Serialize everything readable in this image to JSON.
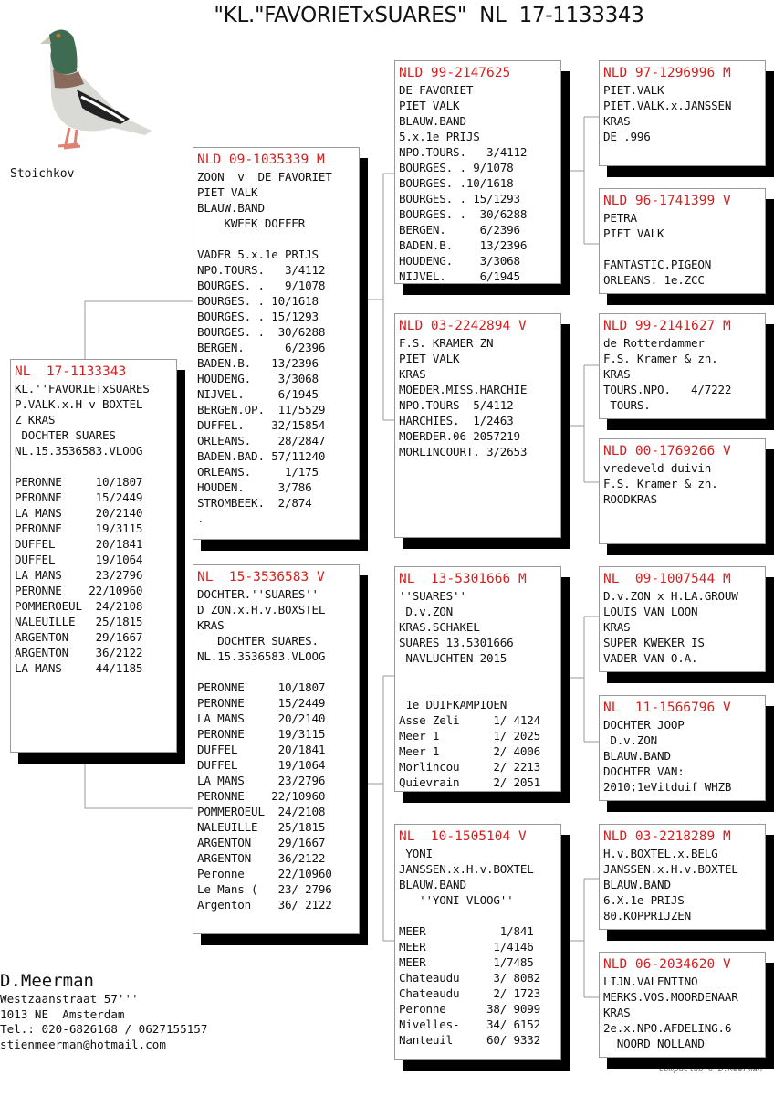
{
  "title": "\"KL.\"FAVORIETxSUARES\"  NL  17-1133343",
  "photo": {
    "caption": "Stoichkov",
    "icon": "pigeon-photo"
  },
  "colors": {
    "ring": "#d42020",
    "shadow": "#000000",
    "border": "#999999"
  },
  "pedigree": {
    "subject": {
      "ring": "NL  17-1133343",
      "lines": [
        "KL.''FAVORIETxSUARES",
        "P.VALK.x.H v BOXTEL",
        "Z KRAS",
        " DOCHTER SUARES",
        "NL.15.3536583.VLOOG",
        "",
        "PERONNE     10/1807",
        "PERONNE     15/2449",
        "LA MANS     20/2140",
        "PERONNE     19/3115",
        "DUFFEL      20/1841",
        "DUFFEL      19/1064",
        "LA MANS     23/2796",
        "PERONNE    22/10960",
        "POMMEROEUL  24/2108",
        "NALEUILLE   25/1815",
        "ARGENTON    29/1667",
        "ARGENTON    36/2122",
        "LA MANS     44/1185"
      ]
    },
    "sire": {
      "ring": "NLD 09-1035339 M",
      "lines": [
        "ZOON  v  DE FAVORIET",
        "PIET VALK",
        "BLAUW.BAND",
        "    KWEEK DOFFER",
        "",
        "VADER 5.x.1e PRIJS",
        "NPO.TOURS.   3/4112",
        "BOURGES. .   9/1078",
        "BOURGES. . 10/1618",
        "BOURGES. . 15/1293",
        "BOURGES. .  30/6288",
        "BERGEN.      6/2396",
        "BADEN.B.   13/2396",
        "HOUDENG.    3/3068",
        "NIJVEL.     6/1945",
        "BERGEN.OP.  11/5529",
        "DUFFEL.    32/15854",
        "ORLEANS.    28/2847",
        "BADEN.BAD. 57/11240",
        "ORLEANS.     1/175",
        "HOUDEN.     3/786",
        "STROMBEEK.  2/874",
        "."
      ]
    },
    "dam": {
      "ring": "NL  15-3536583 V",
      "lines": [
        "DOCHTER.''SUARES''",
        "D ZON.x.H.v.BOXSTEL",
        "KRAS",
        "   DOCHTER SUARES.",
        "NL.15.3536583.VLOOG",
        "",
        "PERONNE     10/1807",
        "PERONNE     15/2449",
        "LA MANS     20/2140",
        "PERONNE     19/3115",
        "DUFFEL      20/1841",
        "DUFFEL      19/1064",
        "LA MANS     23/2796",
        "PERONNE    22/10960",
        "POMMEROEUL  24/2108",
        "NALEUILLE   25/1815",
        "ARGENTON    29/1667",
        "ARGENTON    36/2122",
        "Peronne     22/10960",
        "Le Mans (   23/ 2796",
        "Argenton    36/ 2122"
      ]
    },
    "sire_sire": {
      "ring": "NLD 99-2147625",
      "lines": [
        "DE FAVORIET",
        "PIET VALK",
        "BLAUW.BAND",
        "5.x.1e PRIJS",
        "NPO.TOURS.   3/4112",
        "BOURGES. . 9/1078",
        "BOURGES. .10/1618",
        "BOURGES. . 15/1293",
        "BOURGES. .  30/6288",
        "BERGEN.     6/2396",
        "BADEN.B.    13/2396",
        "HOUDENG.    3/3068",
        "NIJVEL.     6/1945"
      ]
    },
    "sire_dam": {
      "ring": "NLD 03-2242894 V",
      "lines": [
        "F.S. KRAMER ZN",
        "PIET VALK",
        "KRAS",
        "MOEDER.MISS.HARCHIE",
        "NPO.TOURS  5/4112",
        "HARCHIES.  1/2463",
        "MOERDER.06 2057219",
        "MORLINCOURT. 3/2653"
      ]
    },
    "dam_sire": {
      "ring": "NL  13-5301666 M",
      "lines": [
        "''SUARES''",
        " D.v.ZON",
        "KRAS.SCHAKEL",
        "SUARES 13.5301666",
        " NAVLUCHTEN 2015",
        "",
        "",
        " 1e DUIFKAMPIOEN",
        "Asse Zeli     1/ 4124",
        "Meer 1        1/ 2025",
        "Meer 1        2/ 4006",
        "Morlincou     2/ 2213",
        "Quievrain     2/ 2051"
      ]
    },
    "dam_dam": {
      "ring": "NL  10-1505104 V",
      "lines": [
        " YONI",
        "JANSSEN.x.H.v.BOXTEL",
        "BLAUW.BAND",
        "   ''YONI VLOOG''",
        "",
        "MEER           1/841",
        "MEER          1/4146",
        "MEER          1/7485",
        "Chateaudu     3/ 8082",
        "Chateaudu     2/ 1723",
        "Peronne      38/ 9099",
        "Nivelles-    34/ 6152",
        "Nanteuil     60/ 9332"
      ]
    },
    "g4": [
      {
        "ring": "NLD 97-1296996 M",
        "lines": [
          "PIET.VALK",
          "PIET.VALK.x.JANSSEN",
          "KRAS",
          "DE .996"
        ]
      },
      {
        "ring": "NLD 96-1741399 V",
        "lines": [
          "PETRA",
          "PIET VALK",
          "",
          "FANTASTIC.PIGEON",
          "ORLEANS. 1e.ZCC"
        ]
      },
      {
        "ring": "NLD 99-2141627 M",
        "lines": [
          "de Rotterdammer",
          "F.S. Kramer & zn.",
          "KRAS",
          "TOURS.NPO.   4/7222",
          " TOURS."
        ]
      },
      {
        "ring": "NLD 00-1769266 V",
        "lines": [
          "vredeveld duivin",
          "F.S. Kramer & zn.",
          "ROODKRAS"
        ]
      },
      {
        "ring": "NL  09-1007544 M",
        "lines": [
          "D.v.ZON x H.LA.GROUW",
          "LOUIS VAN LOON",
          "KRAS",
          "SUPER KWEKER IS",
          "VADER VAN O.A."
        ]
      },
      {
        "ring": "NL  11-1566796 V",
        "lines": [
          "DOCHTER JOOP",
          " D.v.ZON",
          "BLAUW.BAND",
          "DOCHTER VAN:",
          "2010;1eVitduif WHZB"
        ]
      },
      {
        "ring": "NLD 03-2218289 M",
        "lines": [
          "H.v.BOXTEL.x.BELG",
          "JANSSEN.x.H.v.BOXTEL",
          "BLAUW.BAND",
          "6.X.1e PRIJS",
          "80.KOPPRIJZEN"
        ]
      },
      {
        "ring": "NLD 06-2034620 V",
        "lines": [
          "LIJN.VALENTINO",
          "MERKS.VOS.MOORDENAAR",
          "KRAS",
          "2e.x.NPO.AFDELING.6",
          "  NOORD NOLLAND"
        ]
      }
    ]
  },
  "owner": {
    "name": "D.Meerman",
    "address": "Westzaanstraat 57'''",
    "city": "1013 NE  Amsterdam",
    "phone": "Tel.: 020-6826168 / 0627155157",
    "email": "stienmeerman@hotmail.com"
  },
  "credit": "Compuclub © D.Meerman"
}
